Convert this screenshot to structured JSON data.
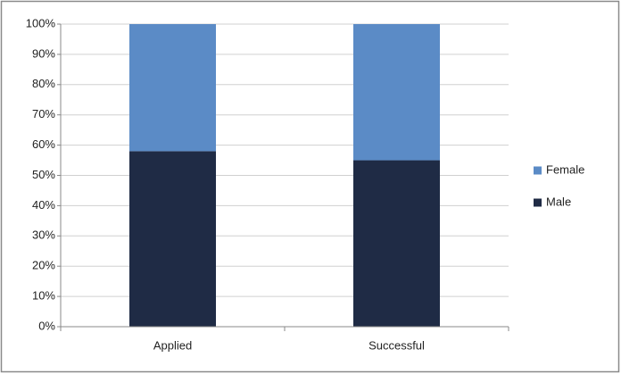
{
  "chart_data": {
    "type": "stacked_bar",
    "categories": [
      "Applied",
      "Successful"
    ],
    "series": [
      {
        "name": "Male",
        "color": "#1f2b45",
        "values": [
          58,
          55
        ]
      },
      {
        "name": "Female",
        "color": "#5b8bc6",
        "values": [
          42,
          45
        ]
      }
    ],
    "ylim": [
      0,
      100
    ],
    "yticks": [
      {
        "value": 0,
        "label": "0%"
      },
      {
        "value": 10,
        "label": "10%"
      },
      {
        "value": 20,
        "label": "20%"
      },
      {
        "value": 30,
        "label": "30%"
      },
      {
        "value": 40,
        "label": "40%"
      },
      {
        "value": 50,
        "label": "50%"
      },
      {
        "value": 60,
        "label": "60%"
      },
      {
        "value": 70,
        "label": "70%"
      },
      {
        "value": 80,
        "label": "80%"
      },
      {
        "value": 90,
        "label": "90%"
      },
      {
        "value": 100,
        "label": "100%"
      }
    ],
    "grid": true,
    "legend": "right"
  }
}
